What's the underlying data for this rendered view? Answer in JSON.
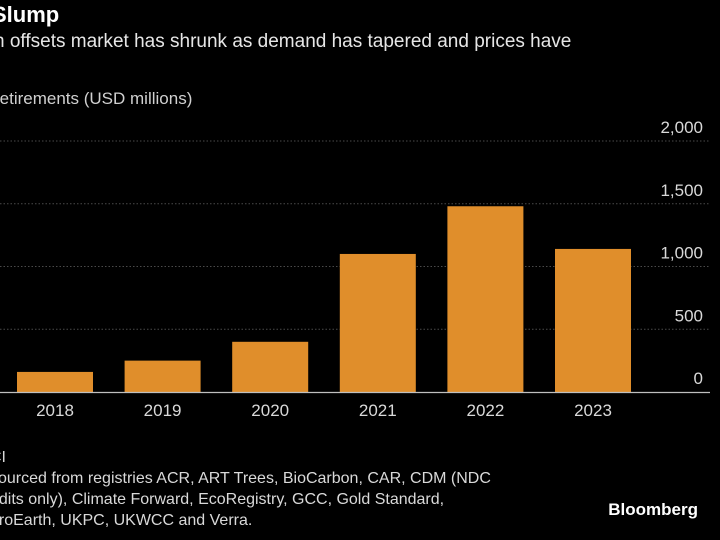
{
  "header": {
    "title": "Slump",
    "subtitle": "n offsets market has shrunk as demand has tapered and prices have",
    "unit_label": "retirements (USD millions)"
  },
  "chart_data": {
    "type": "bar",
    "categories": [
      "2018",
      "2019",
      "2020",
      "2021",
      "2022",
      "2023"
    ],
    "values": [
      160,
      250,
      400,
      1100,
      1480,
      1140
    ],
    "ylabel": "retirements (USD millions)",
    "ylim": [
      0,
      2000
    ],
    "yticks": [
      0,
      500,
      1000,
      1500,
      2000
    ],
    "ytick_labels": [
      "0",
      "500",
      "1,000",
      "1,500",
      "2,000"
    ],
    "y_axis_side": "right",
    "grid": true,
    "bar_color": "#e08e2b"
  },
  "footer": {
    "lines": [
      "CI",
      "sourced from registries ACR, ART Trees, BioCarbon, CAR, CDM (NDC",
      "edits only), Climate Forward, EcoRegistry, GCC, Gold Standard,",
      "uroEarth, UKPC, UKWCC and Verra."
    ],
    "brand": "Bloomberg"
  }
}
